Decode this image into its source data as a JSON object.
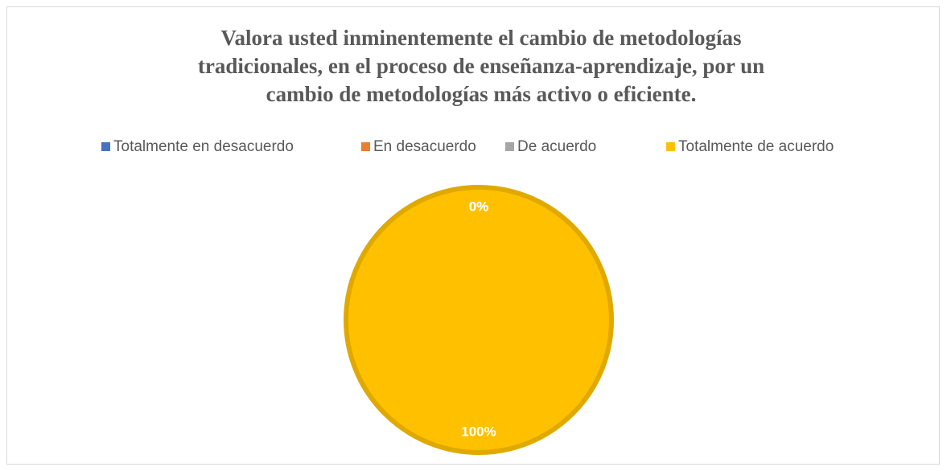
{
  "chart_data": {
    "type": "pie",
    "title": "Valora usted inminentemente el cambio de metodologías tradicionales, en el proceso de enseñanza-aprendizaje, por un cambio de metodologías más activo o eficiente.",
    "categories": [
      "Totalmente en desacuerdo",
      "En desacuerdo",
      "De acuerdo",
      "Totalmente de acuerdo"
    ],
    "values": [
      0,
      0,
      0,
      100
    ],
    "value_labels": [
      "0%",
      "0%",
      "0%",
      "100%"
    ],
    "colors": [
      "#4472c4",
      "#ed7d31",
      "#a5a5a5",
      "#ffc000"
    ],
    "legend": "top"
  }
}
